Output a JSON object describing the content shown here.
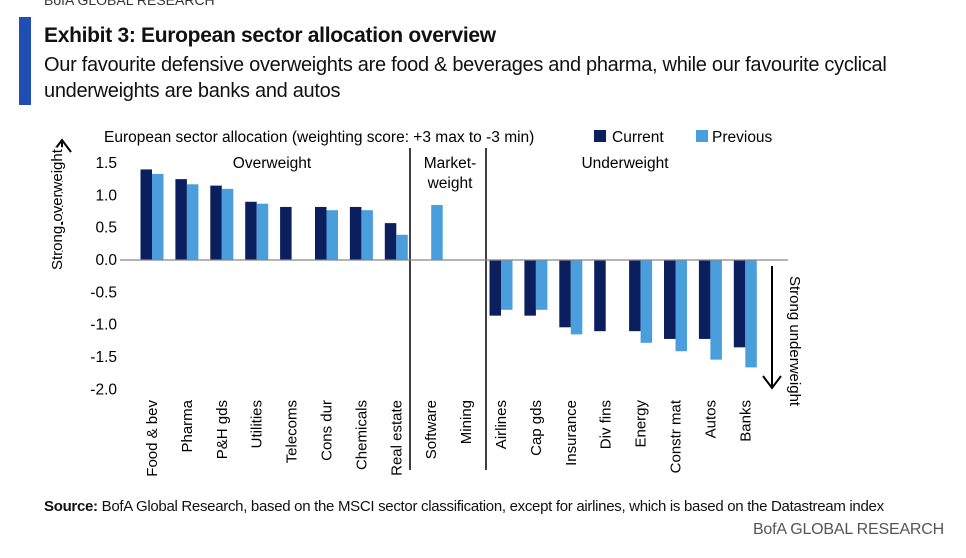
{
  "header": {
    "brand": "BofA GLOBAL RESEARCH",
    "title": "Exhibit 3:  European sector allocation overview",
    "subtitle": "Our favourite defensive overweights are food & beverages and pharma, while our favourite cyclical underweights are banks and autos"
  },
  "chart_data": {
    "type": "bar",
    "title": "European sector allocation (weighting score: +3 max to -3 min)",
    "categories": [
      "Food & bev",
      "Pharma",
      "P&H gds",
      "Utilities",
      "Telecoms",
      "Cons dur",
      "Chemicals",
      "Real estate",
      "Software",
      "Mining",
      "Airlines",
      "Cap gds",
      "Insurance",
      "Div fins",
      "Energy",
      "Constr mat",
      "Autos",
      "Banks"
    ],
    "series": [
      {
        "name": "Current",
        "color": "#0b1f5e",
        "values": [
          1.4,
          1.25,
          1.15,
          0.9,
          0.82,
          0.82,
          0.82,
          0.57,
          null,
          null,
          -0.86,
          -0.86,
          -1.04,
          -1.1,
          -1.1,
          -1.22,
          -1.22,
          -1.35
        ]
      },
      {
        "name": "Previous",
        "color": "#4a9edc",
        "values": [
          1.33,
          1.17,
          1.1,
          0.87,
          null,
          0.77,
          0.77,
          0.39,
          0.85,
          null,
          -0.77,
          -0.77,
          -1.15,
          null,
          -1.28,
          -1.41,
          -1.54,
          -1.66
        ]
      }
    ],
    "yticks": [
      "1.5",
      "1.0",
      "0.5",
      "0.0",
      "-0.5",
      "-1.0",
      "-1.5",
      "-2.0"
    ],
    "ylim": [
      -2.0,
      1.5
    ],
    "ylabel_top": "Strong overweight",
    "ylabel_bottom": "Strong underweight",
    "section_labels": [
      "Overweight",
      "Market-",
      "weight",
      "Underweight"
    ],
    "legend": "top-right",
    "grid": false
  },
  "source": {
    "label": "Source:",
    "text": " BofA Global Research, based on the MSCI sector classification, except for airlines, which is based on the Datastream index"
  },
  "footer": "BofA GLOBAL RESEARCH"
}
